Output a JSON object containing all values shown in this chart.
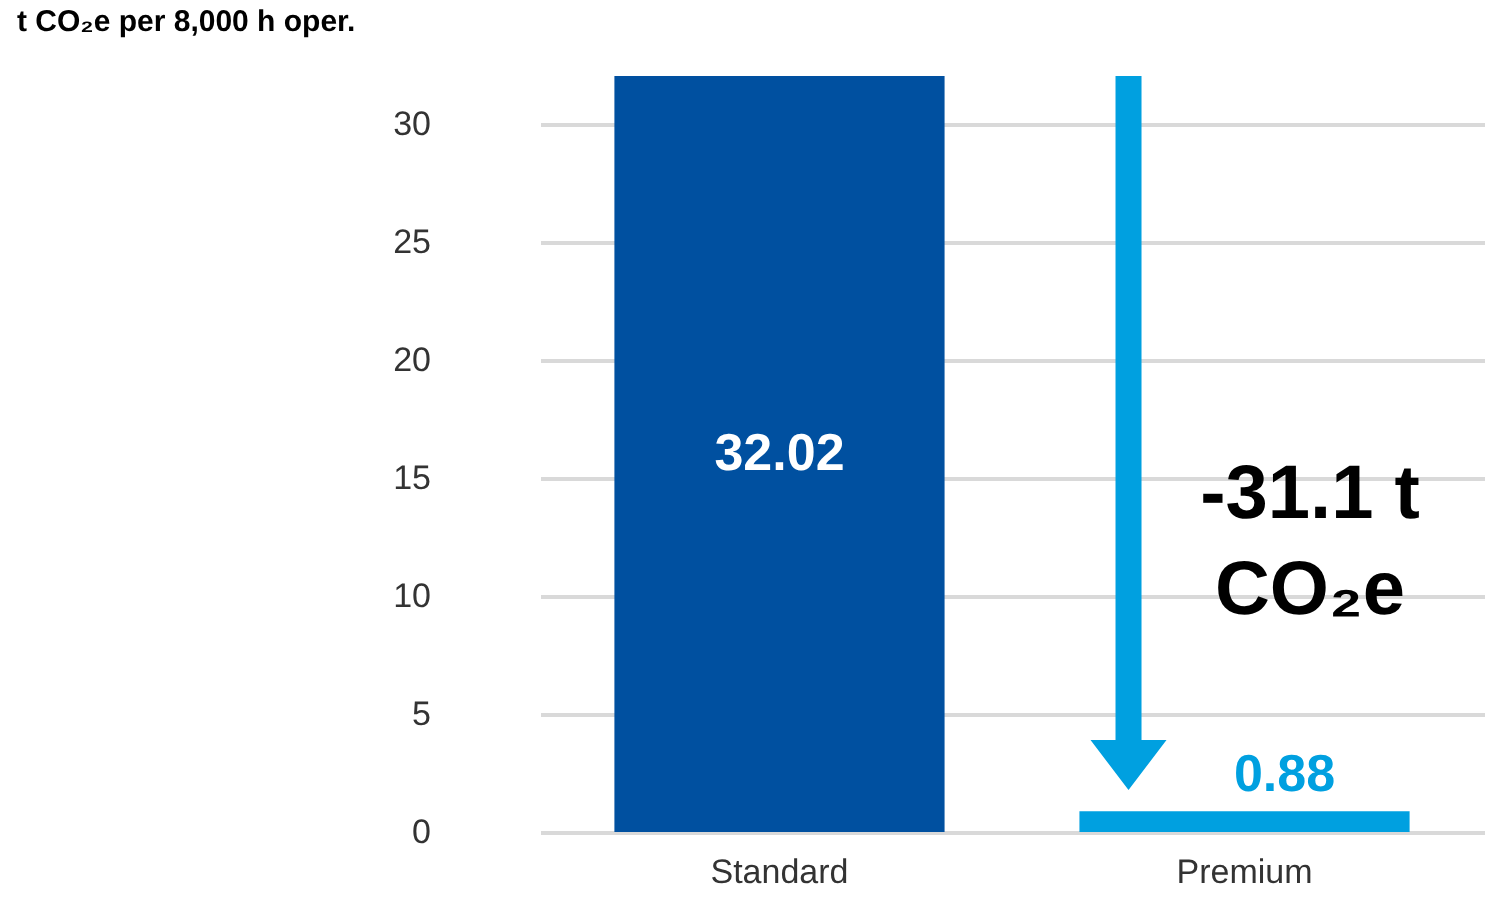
{
  "chart_data": {
    "type": "bar",
    "ylabel": "t CO₂e per 8,000 h oper.",
    "categories": [
      "Standard",
      "Premium"
    ],
    "values": [
      32.02,
      0.88
    ],
    "colors": [
      "#0050a0",
      "#00a0e0"
    ],
    "ylim": [
      0,
      32.02
    ],
    "yticks": [
      0,
      5,
      10,
      15,
      20,
      25,
      30
    ],
    "grid": "y",
    "data_labels": true,
    "annotations": [
      "-31.1 t\nCO₂e"
    ]
  }
}
